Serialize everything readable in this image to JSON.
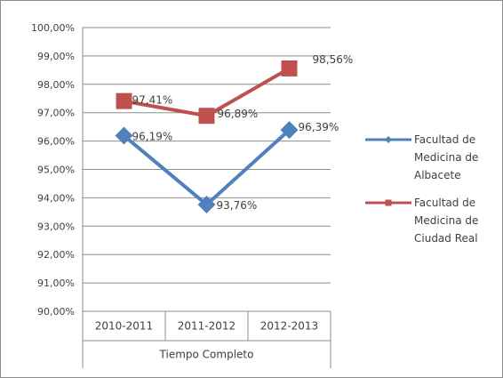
{
  "chart_data": {
    "type": "line",
    "group_label": "Tiempo Completo",
    "categories": [
      "2010-2011",
      "2011-2012",
      "2012-2013"
    ],
    "ylim": [
      90,
      100
    ],
    "yticks": [
      "90,00%",
      "91,00%",
      "92,00%",
      "93,00%",
      "94,00%",
      "95,00%",
      "96,00%",
      "97,00%",
      "98,00%",
      "99,00%",
      "100,00%"
    ],
    "grid": true,
    "legend_position": "right",
    "series": [
      {
        "name": "Facultad de Medicina de Albacete",
        "legend_lines": [
          "Facultad de",
          "Medicina de",
          "Albacete"
        ],
        "values": [
          96.19,
          93.76,
          96.39
        ],
        "labels": [
          "96,19%",
          "93,76%",
          "96,39%"
        ],
        "color": "#4f81bd",
        "marker": "diamond"
      },
      {
        "name": "Facultad de Medicina de Ciudad Real",
        "legend_lines": [
          "Facultad de",
          "Medicina de",
          "Ciudad Real"
        ],
        "values": [
          97.41,
          96.89,
          98.56
        ],
        "labels": [
          "97,41%",
          "96,89%",
          "98,56%"
        ],
        "color": "#c0504d",
        "marker": "square"
      }
    ]
  }
}
